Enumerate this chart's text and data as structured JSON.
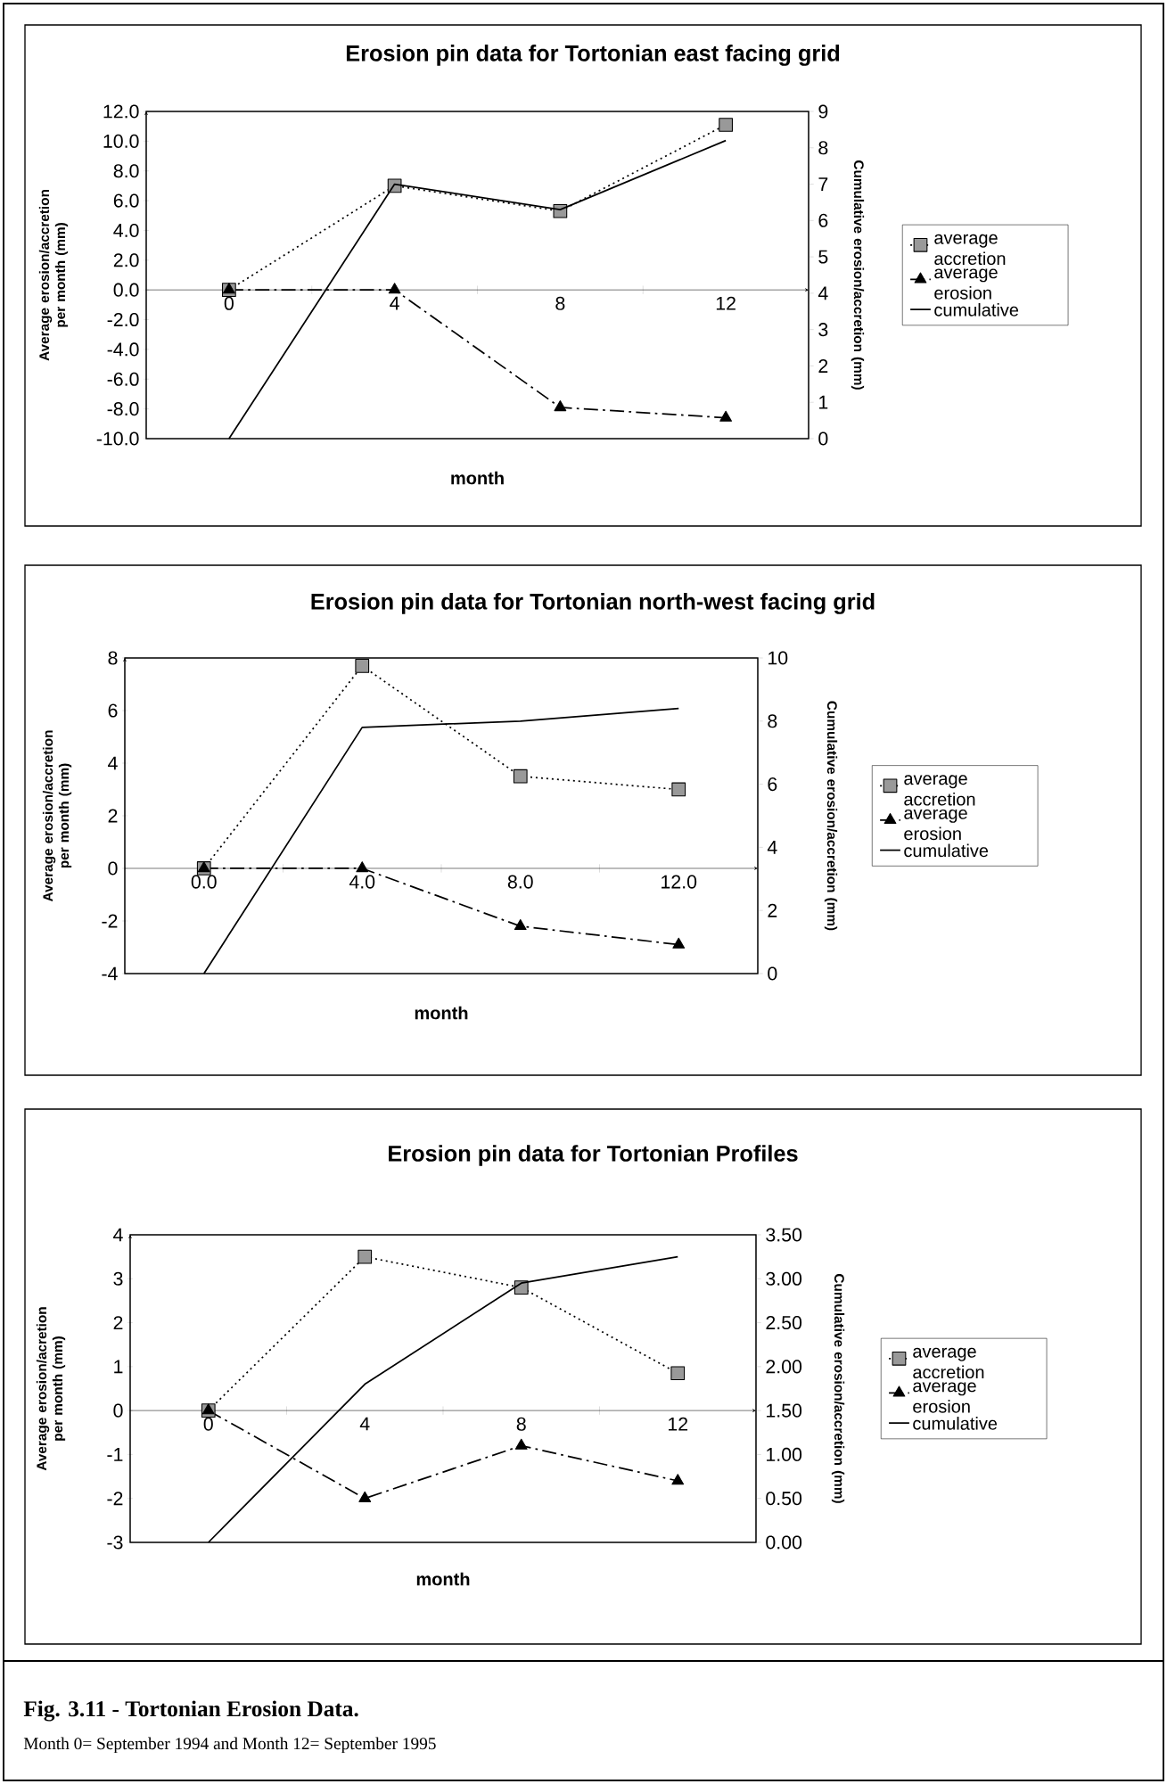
{
  "chart_data": [
    {
      "type": "line",
      "title": "Erosion pin data for Tortonian east facing grid",
      "xlabel": "month",
      "ylabel": "Average erosion/accretion per month (mm)",
      "y2label": "Cumulative erosion/accretion (mm)",
      "categories": [
        "0",
        "4",
        "8",
        "12"
      ],
      "series": [
        {
          "name": "average accretion",
          "color": "#000000",
          "marker": "square",
          "line_style": "dotted",
          "values": [
            0,
            7.0,
            5.3,
            11.1
          ]
        },
        {
          "name": "average erosion",
          "color": "#000000",
          "marker": "triangle",
          "line_style": "dashed",
          "values": [
            0,
            0,
            -7.9,
            -8.6
          ]
        },
        {
          "name": "cumulative",
          "color": "#000000",
          "marker": "none",
          "line_style": "solid",
          "axis": "y2",
          "values": [
            0,
            7.0,
            6.3,
            8.2
          ]
        }
      ],
      "ylim": [
        -10,
        12
      ],
      "yticks": [
        {
          "value": -10,
          "label": "-10.0"
        },
        {
          "value": -8,
          "label": "-8.0"
        },
        {
          "value": -6,
          "label": "-6.0"
        },
        {
          "value": -4,
          "label": "-4.0"
        },
        {
          "value": -2,
          "label": "-2.0"
        },
        {
          "value": 0,
          "label": "0.0"
        },
        {
          "value": 2,
          "label": "2.0"
        },
        {
          "value": 4,
          "label": "4.0"
        },
        {
          "value": 6,
          "label": "6.0"
        },
        {
          "value": 8,
          "label": "8.0"
        },
        {
          "value": 10,
          "label": "10.0"
        },
        {
          "value": 12,
          "label": "12.0"
        }
      ],
      "y2lim": [
        0,
        9
      ],
      "y2ticks": [
        0,
        1,
        2,
        3,
        4,
        5,
        6,
        7,
        8,
        9
      ],
      "legend": "right"
    },
    {
      "type": "line",
      "title": "Erosion pin data for Tortonian north-west facing grid",
      "xlabel": "month",
      "ylabel": "Average erosion/accretion per month (mm)",
      "y2label": "Cumulative erosion/accretion (mm)",
      "categories": [
        "0.0",
        "4.0",
        "8.0",
        "12.0"
      ],
      "series": [
        {
          "name": "average accretion",
          "color": "#000000",
          "marker": "square",
          "line_style": "dotted",
          "values": [
            0,
            7.7,
            3.5,
            3.0
          ]
        },
        {
          "name": "average erosion",
          "color": "#000000",
          "marker": "triangle",
          "line_style": "dashed",
          "values": [
            0,
            0,
            -2.2,
            -2.9
          ]
        },
        {
          "name": "cumulative",
          "color": "#000000",
          "marker": "none",
          "line_style": "solid",
          "axis": "y2",
          "values": [
            0,
            7.8,
            8.0,
            8.4
          ]
        }
      ],
      "ylim": [
        -4,
        8
      ],
      "yticks": [
        -4,
        -2,
        0,
        2,
        4,
        6,
        8
      ],
      "y2lim": [
        0,
        10
      ],
      "y2ticks": [
        0,
        2,
        4,
        6,
        8,
        10
      ],
      "legend": "right"
    },
    {
      "type": "line",
      "title": "Erosion pin data for Tortonian Profiles",
      "xlabel": "month",
      "ylabel": "Average erosion/acretion per month (mm)",
      "y2label": "Cumulative erosion/accretion (mm)",
      "categories": [
        "0",
        "4",
        "8",
        "12"
      ],
      "series": [
        {
          "name": "average accretion",
          "color": "#000000",
          "marker": "square",
          "line_style": "dotted",
          "values": [
            0,
            3.5,
            2.8,
            0.85
          ]
        },
        {
          "name": "average erosion",
          "color": "#000000",
          "marker": "triangle",
          "line_style": "dashed",
          "values": [
            0,
            -2.0,
            -0.8,
            -1.6
          ]
        },
        {
          "name": "cumulative",
          "color": "#000000",
          "marker": "none",
          "line_style": "solid",
          "axis": "y2",
          "values": [
            0,
            1.8,
            2.95,
            3.25
          ]
        }
      ],
      "ylim": [
        -3,
        4
      ],
      "yticks": [
        -3,
        -2,
        -1,
        0,
        1,
        2,
        3,
        4
      ],
      "y2lim": [
        0,
        3.5
      ],
      "y2ticks": [
        {
          "value": 0,
          "label": "0.00"
        },
        {
          "value": 0.5,
          "label": "0.50"
        },
        {
          "value": 1,
          "label": "1.00"
        },
        {
          "value": 1.5,
          "label": "1.50"
        },
        {
          "value": 2,
          "label": "2.00"
        },
        {
          "value": 2.5,
          "label": "2.50"
        },
        {
          "value": 3,
          "label": "3.00"
        },
        {
          "value": 3.5,
          "label": "3.50"
        }
      ],
      "legend": "right",
      "annotations": [
        "Fig. 3.11 - Tortonian Erosion Data.",
        "Month 0= September 1994 and Month 12= September 1995"
      ]
    }
  ]
}
